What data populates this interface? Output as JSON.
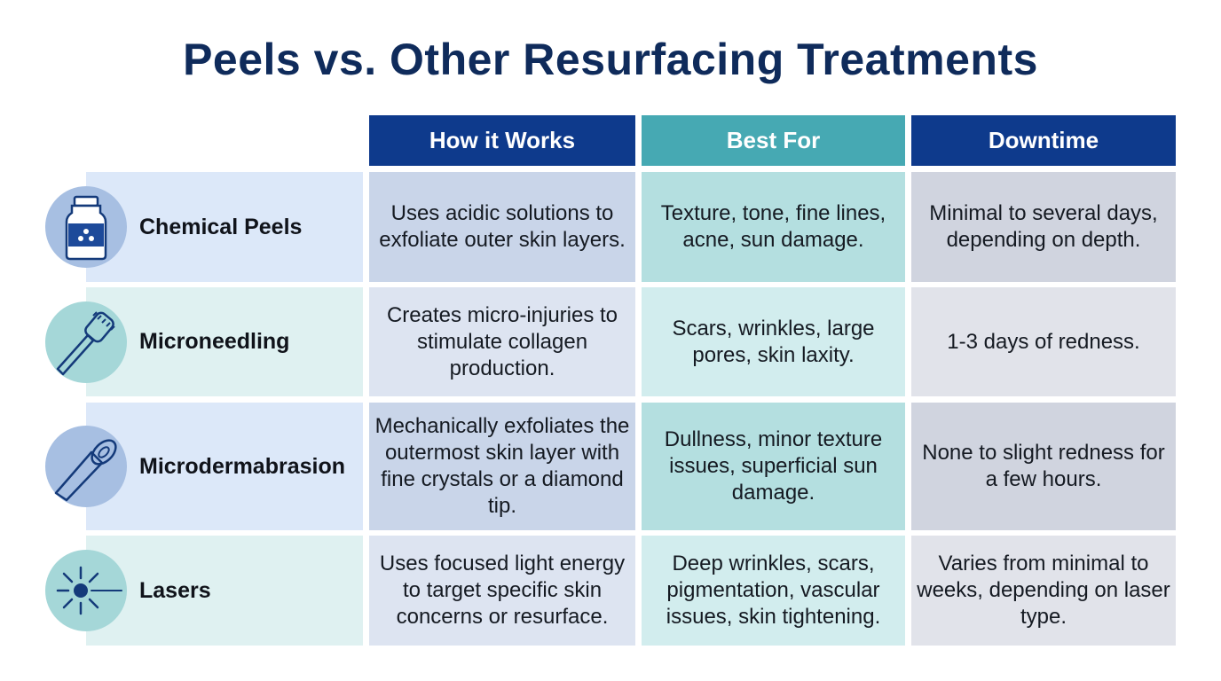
{
  "title": "Peels vs. Other Resurfacing Treatments",
  "table": {
    "columns": [
      "How it Works",
      "Best For",
      "Downtime"
    ],
    "rows": [
      {
        "label": "Chemical Peels",
        "cells": [
          "Uses acidic solutions to exfoliate outer skin layers.",
          "Texture, tone, fine lines, acne, sun damage.",
          "Minimal to several days, depending on depth."
        ]
      },
      {
        "label": "Microneedling",
        "cells": [
          "Creates micro-injuries to stimulate collagen production.",
          "Scars, wrinkles, large pores, skin laxity.",
          "1-3 days of redness."
        ]
      },
      {
        "label": "Microdermabrasion",
        "cells": [
          "Mechanically exfoliates the outermost skin layer with fine crystals or a diamond tip.",
          "Dullness, minor texture issues, superficial sun damage.",
          "None to slight redness for a few hours."
        ]
      },
      {
        "label": "Lasers",
        "cells": [
          "Uses focused light energy to target specific skin concerns or resurface.",
          "Deep wrinkles, scars, pigmentation, vascular issues, skin tightening.",
          "Varies from minimal to weeks, depending on laser type."
        ]
      }
    ]
  }
}
